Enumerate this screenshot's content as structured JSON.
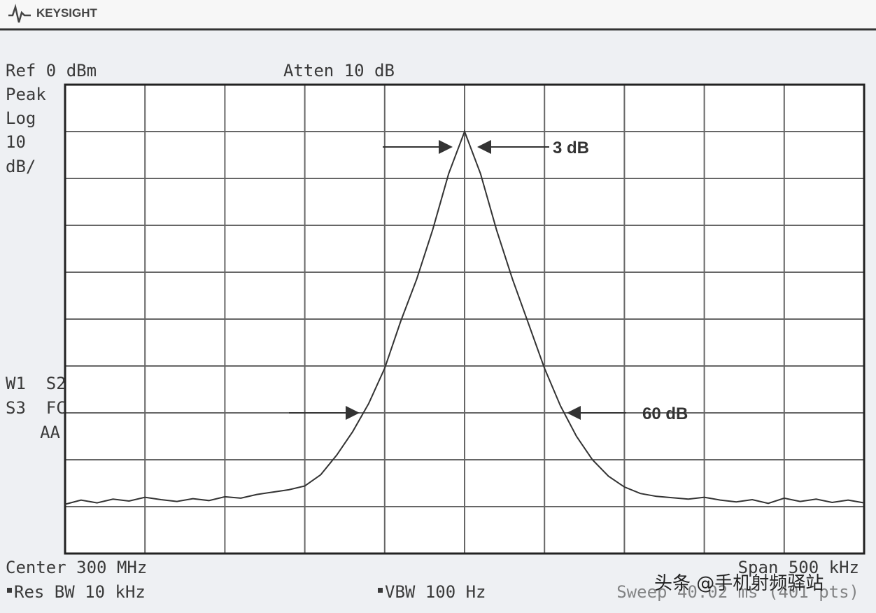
{
  "chart_data": {
    "type": "line",
    "brand": "KEYSIGHT",
    "ref_level": "Ref 0 dBm",
    "attenuation": "Atten 10 dB",
    "detector": [
      "Peak",
      "Log",
      "10",
      "dB/"
    ],
    "status": [
      "W1  S2",
      "S3  FC",
      "AA"
    ],
    "center": "Center 300 MHz",
    "span": "Span 500 kHz",
    "res_bw": "Res BW 10 kHz",
    "vbw": "VBW 100 Hz",
    "sweep": "Sweep 40.02 ms (401 pts)",
    "annotations": [
      "3 dB",
      "60 dB"
    ],
    "watermark": "头条 @手机射频驿站",
    "xlim": [
      299.75,
      300.25
    ],
    "ylim": [
      -100,
      0
    ],
    "color": "#333333",
    "x": [
      299.75,
      299.76,
      299.77,
      299.78,
      299.79,
      299.8,
      299.81,
      299.82,
      299.83,
      299.84,
      299.85,
      299.86,
      299.87,
      299.88,
      299.89,
      299.9,
      299.91,
      299.92,
      299.93,
      299.94,
      299.95,
      299.96,
      299.97,
      299.98,
      299.99,
      300.0,
      300.01,
      300.02,
      300.03,
      300.04,
      300.05,
      300.06,
      300.07,
      300.08,
      300.09,
      300.1,
      300.11,
      300.12,
      300.13,
      300.14,
      300.15,
      300.16,
      300.17,
      300.18,
      300.19,
      300.2,
      300.21,
      300.22,
      300.23,
      300.24,
      300.25
    ],
    "values": [
      -89.5,
      -88.6,
      -89.2,
      -88.4,
      -88.8,
      -88.0,
      -88.5,
      -88.9,
      -88.3,
      -88.7,
      -87.9,
      -88.2,
      -87.4,
      -86.9,
      -86.4,
      -85.6,
      -83.2,
      -79.0,
      -74.0,
      -68.0,
      -60.5,
      -50.5,
      -41.5,
      -31.0,
      -19.0,
      -10.0,
      -19.0,
      -31.0,
      -41.5,
      -51.0,
      -60.5,
      -68.5,
      -75.0,
      -80.0,
      -83.5,
      -85.8,
      -87.2,
      -87.8,
      -88.1,
      -88.4,
      -88.0,
      -88.6,
      -89.0,
      -88.5,
      -89.3,
      -88.2,
      -88.9,
      -88.4,
      -89.1,
      -88.6,
      -89.2
    ]
  }
}
